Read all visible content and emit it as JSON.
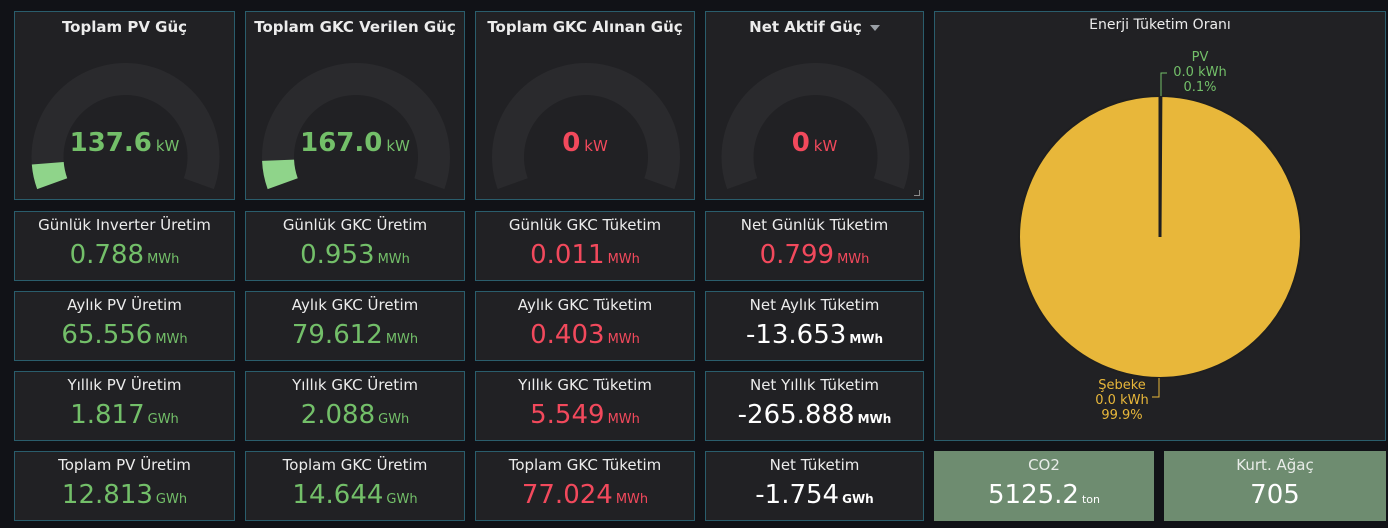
{
  "gauges": [
    {
      "title": "Toplam PV Güç",
      "value": "137.6",
      "unit": "kW",
      "fraction": 0.07,
      "color": "#73bf69",
      "fill": "#8fd48a"
    },
    {
      "title": "Toplam GKC Verilen Güç",
      "value": "167.0",
      "unit": "kW",
      "fraction": 0.08,
      "color": "#73bf69",
      "fill": "#8fd48a"
    },
    {
      "title": "Toplam GKC Alınan Güç",
      "value": "0",
      "unit": "kW",
      "fraction": 0,
      "color": "#f2495c",
      "fill": "#f2495c"
    },
    {
      "title": "Net Aktif Güç",
      "value": "0",
      "unit": "kW",
      "fraction": 0,
      "color": "#f2495c",
      "fill": "#f2495c"
    }
  ],
  "stats": [
    [
      {
        "title": "Günlük Inverter Üretim",
        "value": "0.788",
        "unit": "MWh",
        "color": "green"
      },
      {
        "title": "Günlük GKC Üretim",
        "value": "0.953",
        "unit": "MWh",
        "color": "green"
      },
      {
        "title": "Günlük GKC Tüketim",
        "value": "0.011",
        "unit": "MWh",
        "color": "red"
      },
      {
        "title": "Net Günlük Tüketim",
        "value": "0.799",
        "unit": "MWh",
        "color": "red"
      }
    ],
    [
      {
        "title": "Aylık PV Üretim",
        "value": "65.556",
        "unit": "MWh",
        "color": "green"
      },
      {
        "title": "Aylık GKC Üretim",
        "value": "79.612",
        "unit": "MWh",
        "color": "green"
      },
      {
        "title": "Aylık GKC Tüketim",
        "value": "0.403",
        "unit": "MWh",
        "color": "red"
      },
      {
        "title": "Net Aylık Tüketim",
        "value": "-13.653",
        "unit": "MWh",
        "color": "white"
      }
    ],
    [
      {
        "title": "Yıllık PV Üretim",
        "value": "1.817",
        "unit": "GWh",
        "color": "green"
      },
      {
        "title": "Yıllık GKC Üretim",
        "value": "2.088",
        "unit": "GWh",
        "color": "green"
      },
      {
        "title": "Yıllık GKC Tüketim",
        "value": "5.549",
        "unit": "MWh",
        "color": "red"
      },
      {
        "title": "Net Yıllık Tüketim",
        "value": "-265.888",
        "unit": "MWh",
        "color": "white"
      }
    ],
    [
      {
        "title": "Toplam PV Üretim",
        "value": "12.813",
        "unit": "GWh",
        "color": "green"
      },
      {
        "title": "Toplam GKC Üretim",
        "value": "14.644",
        "unit": "GWh",
        "color": "green"
      },
      {
        "title": "Toplam GKC Tüketim",
        "value": "77.024",
        "unit": "MWh",
        "color": "red"
      },
      {
        "title": "Net Tüketim",
        "value": "-1.754",
        "unit": "GWh",
        "color": "white"
      }
    ]
  ],
  "pie": {
    "title": "Enerji Tüketim Oranı",
    "pv": {
      "name": "PV",
      "value": "0.0 kWh",
      "percent": "0.1%",
      "fraction": 0.001,
      "color": "#73bf69"
    },
    "grid": {
      "name": "Şebeke",
      "value": "0.0 kWh",
      "percent": "99.9%",
      "fraction": 0.999,
      "color": "#e8b73a"
    }
  },
  "co2": {
    "title": "CO2",
    "value": "5125.2",
    "unit": "ton"
  },
  "tree": {
    "title": "Kurt. Ağaç",
    "value": "705"
  }
}
